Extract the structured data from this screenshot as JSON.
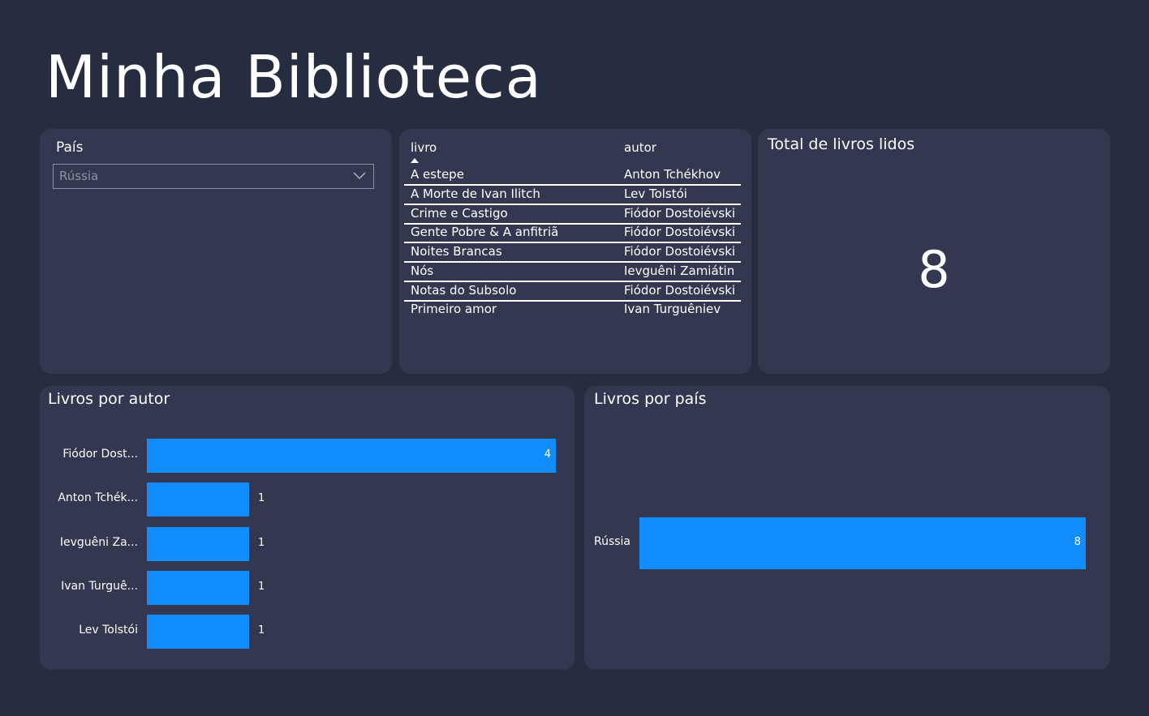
{
  "page": {
    "title": "Minha Biblioteca"
  },
  "slicer": {
    "label": "País",
    "selected": "Rússia"
  },
  "table": {
    "columns": [
      "livro",
      "autor"
    ],
    "rows": [
      [
        "A estepe",
        "Anton Tchékhov"
      ],
      [
        "A Morte de Ivan Ilitch",
        "Lev Tolstói"
      ],
      [
        "Crime e Castigo",
        "Fiódor Dostoiévski"
      ],
      [
        "Gente Pobre & A anfitriã",
        "Fiódor Dostoiévski"
      ],
      [
        "Noites Brancas",
        "Fiódor Dostoiévski"
      ],
      [
        "Nós",
        "Ievguêni Zamiátin"
      ],
      [
        "Notas do Subsolo",
        "Fiódor Dostoiévski"
      ],
      [
        "Primeiro amor",
        "Ivan Turguêniev"
      ]
    ]
  },
  "kpi": {
    "title": "Total de livros lidos",
    "value": "8"
  },
  "colors": {
    "bar": "#118dff",
    "card": "#333850",
    "background": "#272d40"
  },
  "chart_data": [
    {
      "type": "bar",
      "orientation": "horizontal",
      "title": "Livros por autor",
      "categories": [
        "Fiódor Dost...",
        "Anton Tchék...",
        "Ievguêni Za...",
        "Ivan Turguê...",
        "Lev Tolstói"
      ],
      "values": [
        4,
        1,
        1,
        1,
        1
      ],
      "xlim": [
        0,
        4
      ]
    },
    {
      "type": "bar",
      "orientation": "horizontal",
      "title": "Livros por país",
      "categories": [
        "Rússia"
      ],
      "values": [
        8
      ],
      "xlim": [
        0,
        8
      ]
    }
  ]
}
